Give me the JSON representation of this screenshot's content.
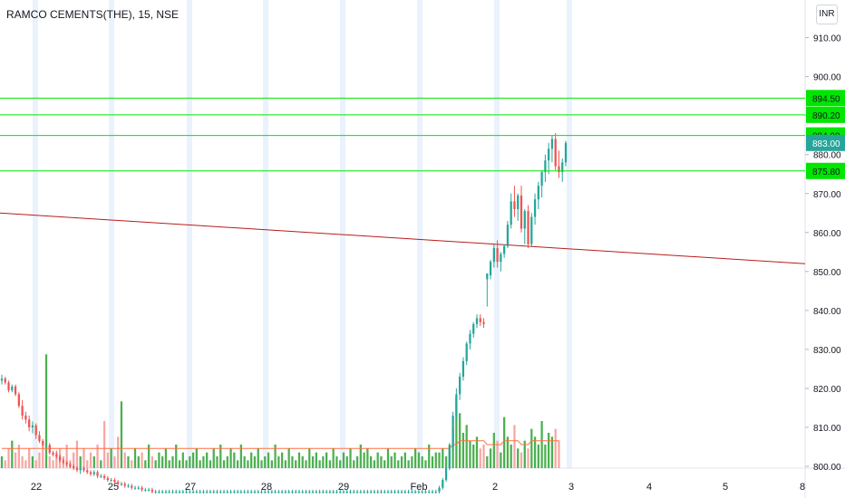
{
  "header": {
    "symbol_line": "RAMCO CEMENTS(THE), 15, NSE",
    "currency": "INR"
  },
  "colors": {
    "up": "#26a69a",
    "down": "#ef5350",
    "vol_up": "#4caf50",
    "vol_down": "#f7a6a3",
    "hline": "#00e600",
    "trendline": "#b71c1c",
    "ma": "#ff7043",
    "last_price_badge": "#26a69a",
    "session_band": "#eaf2fd",
    "axis_text": "#131722"
  },
  "chart_data": {
    "type": "candlestick",
    "y_axis": {
      "ylim": [
        800,
        912
      ],
      "ticks": [
        "800.00",
        "810.00",
        "820.00",
        "830.00",
        "840.00",
        "850.00",
        "860.00",
        "870.00",
        "880.00",
        "890.00",
        "900.00",
        "910.00"
      ]
    },
    "x_axis": {
      "labels": [
        "22",
        "25",
        "27",
        "28",
        "29",
        "Feb",
        "2",
        "3",
        "4",
        "5",
        "8"
      ]
    },
    "horizontal_lines": [
      894.5,
      890.2,
      884.9,
      875.8
    ],
    "price_labels": [
      "894.50",
      "890.20",
      "884.90",
      "875.80"
    ],
    "last_price": "883.00",
    "trendline": {
      "start_value": 865.0,
      "end_value": 852.0
    },
    "candles": [
      [
        822.0,
        823.5,
        821.0,
        822.5
      ],
      [
        822.5,
        823.0,
        821.0,
        821.5
      ],
      [
        821.5,
        822.0,
        819.0,
        819.5
      ],
      [
        819.5,
        821.0,
        819.0,
        820.5
      ],
      [
        820.5,
        821.0,
        818.0,
        818.5
      ],
      [
        818.5,
        819.0,
        815.0,
        815.5
      ],
      [
        815.5,
        817.0,
        812.0,
        813.0
      ],
      [
        813.0,
        814.0,
        811.0,
        812.0
      ],
      [
        812.0,
        813.0,
        809.0,
        810.0
      ],
      [
        810.0,
        811.5,
        808.5,
        810.5
      ],
      [
        810.5,
        811.0,
        807.0,
        808.0
      ],
      [
        808.0,
        809.0,
        806.0,
        806.5
      ],
      [
        806.5,
        807.0,
        805.0,
        805.5
      ],
      [
        805.5,
        806.0,
        805.0,
        805.5
      ],
      [
        805.5,
        806.0,
        803.0,
        803.5
      ],
      [
        803.5,
        804.0,
        802.5,
        803.0
      ],
      [
        803.0,
        804.0,
        802.0,
        802.5
      ],
      [
        802.5,
        803.0,
        801.0,
        801.5
      ],
      [
        801.5,
        802.0,
        800.5,
        801.0
      ],
      [
        801.0,
        801.5,
        800.0,
        800.5
      ],
      [
        800.5,
        801.0,
        799.5,
        800.0
      ],
      [
        800.0,
        800.5,
        799.0,
        799.5
      ],
      [
        799.5,
        800.0,
        798.5,
        799.0
      ],
      [
        799.0,
        800.0,
        798.0,
        799.5
      ],
      [
        799.5,
        800.0,
        798.5,
        799.0
      ],
      [
        799.0,
        799.5,
        798.0,
        798.5
      ],
      [
        798.5,
        799.0,
        797.5,
        798.0
      ],
      [
        798.0,
        799.0,
        797.5,
        798.5
      ],
      [
        798.5,
        799.0,
        797.0,
        797.5
      ],
      [
        797.5,
        798.0,
        797.0,
        797.5
      ],
      [
        797.5,
        798.0,
        796.5,
        797.0
      ],
      [
        797.0,
        797.5,
        796.0,
        796.5
      ],
      [
        796.5,
        797.0,
        796.0,
        796.5
      ],
      [
        796.5,
        797.0,
        795.5,
        796.0
      ],
      [
        796.0,
        796.5,
        795.0,
        795.5
      ],
      [
        795.5,
        796.0,
        795.0,
        795.5
      ],
      [
        795.5,
        796.0,
        794.5,
        795.0
      ],
      [
        795.0,
        795.5,
        794.5,
        795.0
      ],
      [
        795.0,
        795.5,
        794.0,
        794.5
      ],
      [
        794.5,
        795.0,
        794.0,
        794.5
      ],
      [
        794.5,
        795.0,
        794.0,
        794.5
      ],
      [
        794.5,
        795.0,
        793.5,
        794.0
      ],
      [
        794.0,
        794.5,
        793.5,
        794.0
      ],
      [
        794.0,
        794.5,
        793.5,
        794.0
      ],
      [
        794.0,
        794.5,
        793.0,
        793.5
      ],
      [
        793.5,
        794.0,
        793.0,
        793.5
      ],
      [
        793.5,
        794.0,
        793.0,
        793.5
      ],
      [
        793.5,
        794.0,
        793.0,
        793.5
      ],
      [
        793.5,
        794.0,
        793.0,
        793.5
      ],
      [
        793.5,
        794.0,
        793.0,
        793.5
      ],
      [
        793.5,
        794.0,
        793.0,
        793.5
      ],
      [
        793.5,
        794.0,
        793.0,
        793.5
      ],
      [
        793.5,
        794.0,
        793.0,
        793.5
      ],
      [
        793.5,
        794.0,
        793.0,
        793.5
      ],
      [
        793.5,
        794.0,
        793.0,
        793.5
      ],
      [
        793.5,
        794.0,
        793.0,
        793.5
      ],
      [
        793.5,
        794.0,
        793.0,
        793.5
      ],
      [
        793.5,
        794.0,
        793.0,
        793.5
      ],
      [
        793.5,
        794.0,
        793.0,
        793.5
      ],
      [
        793.5,
        794.0,
        793.0,
        793.5
      ],
      [
        793.5,
        794.0,
        793.0,
        793.5
      ],
      [
        793.5,
        794.0,
        793.0,
        793.5
      ],
      [
        793.5,
        794.0,
        793.0,
        793.5
      ],
      [
        793.5,
        794.0,
        793.0,
        793.5
      ],
      [
        793.5,
        794.0,
        793.0,
        793.5
      ],
      [
        793.5,
        794.0,
        793.0,
        793.5
      ],
      [
        793.5,
        794.0,
        793.0,
        793.5
      ],
      [
        793.5,
        794.0,
        793.0,
        793.5
      ],
      [
        793.5,
        794.0,
        793.0,
        793.5
      ],
      [
        793.5,
        794.0,
        793.0,
        793.5
      ],
      [
        793.5,
        794.0,
        793.0,
        793.5
      ],
      [
        793.5,
        794.0,
        793.0,
        793.5
      ],
      [
        793.5,
        794.0,
        793.0,
        793.5
      ],
      [
        793.5,
        794.0,
        793.0,
        793.5
      ],
      [
        793.5,
        794.0,
        793.0,
        793.5
      ],
      [
        793.5,
        794.0,
        793.0,
        793.5
      ],
      [
        793.5,
        794.0,
        793.0,
        793.5
      ],
      [
        793.5,
        794.0,
        793.0,
        793.5
      ],
      [
        793.5,
        794.0,
        793.0,
        793.5
      ],
      [
        793.5,
        794.0,
        793.0,
        793.5
      ],
      [
        793.5,
        794.0,
        793.0,
        793.5
      ],
      [
        793.5,
        794.0,
        793.0,
        793.5
      ],
      [
        793.5,
        794.0,
        793.0,
        793.5
      ],
      [
        793.5,
        794.0,
        793.0,
        793.5
      ],
      [
        793.5,
        794.0,
        793.0,
        793.5
      ],
      [
        793.5,
        794.0,
        793.0,
        793.5
      ],
      [
        793.5,
        794.0,
        793.0,
        793.5
      ],
      [
        793.5,
        794.0,
        793.0,
        793.5
      ],
      [
        793.5,
        794.0,
        793.0,
        793.5
      ],
      [
        793.5,
        794.0,
        793.0,
        793.5
      ],
      [
        793.5,
        794.0,
        793.0,
        793.5
      ],
      [
        793.5,
        794.0,
        793.0,
        793.5
      ],
      [
        793.5,
        794.0,
        793.0,
        793.5
      ],
      [
        793.5,
        794.0,
        793.0,
        793.5
      ],
      [
        793.5,
        794.0,
        793.0,
        793.5
      ],
      [
        793.5,
        794.0,
        793.0,
        793.5
      ],
      [
        793.5,
        794.0,
        793.0,
        793.5
      ],
      [
        793.5,
        794.0,
        793.0,
        793.5
      ],
      [
        793.5,
        794.0,
        793.0,
        793.5
      ],
      [
        793.5,
        794.0,
        793.0,
        793.5
      ],
      [
        793.5,
        794.0,
        793.0,
        793.5
      ],
      [
        793.5,
        794.0,
        793.0,
        793.5
      ],
      [
        793.5,
        794.0,
        793.0,
        793.5
      ],
      [
        793.5,
        794.0,
        793.0,
        793.5
      ],
      [
        793.5,
        794.0,
        793.0,
        793.5
      ],
      [
        793.5,
        794.0,
        793.0,
        793.5
      ],
      [
        793.5,
        794.0,
        793.0,
        793.5
      ],
      [
        793.5,
        794.0,
        793.0,
        793.5
      ],
      [
        793.5,
        794.0,
        793.0,
        793.5
      ],
      [
        793.5,
        794.0,
        793.0,
        793.5
      ],
      [
        793.5,
        794.0,
        793.0,
        793.5
      ],
      [
        793.5,
        794.0,
        793.0,
        793.5
      ],
      [
        793.5,
        794.0,
        793.0,
        793.5
      ],
      [
        793.5,
        794.0,
        793.0,
        793.5
      ],
      [
        793.5,
        794.0,
        793.0,
        793.5
      ],
      [
        793.5,
        794.0,
        793.0,
        793.5
      ],
      [
        793.5,
        794.0,
        793.0,
        793.5
      ],
      [
        793.5,
        794.0,
        793.0,
        793.5
      ],
      [
        793.5,
        794.0,
        793.0,
        793.5
      ],
      [
        793.5,
        794.0,
        793.0,
        793.5
      ],
      [
        793.5,
        794.0,
        793.0,
        793.5
      ],
      [
        793.5,
        794.0,
        793.0,
        793.5
      ],
      [
        793.5,
        794.0,
        793.0,
        793.5
      ],
      [
        793.5,
        794.0,
        793.0,
        793.5
      ],
      [
        793.5,
        794.0,
        793.0,
        793.5
      ],
      [
        793.5,
        794.0,
        793.0,
        793.5
      ],
      [
        793.5,
        794.0,
        793.0,
        793.5
      ],
      [
        793.5,
        794.0,
        793.0,
        793.5
      ],
      [
        793.5,
        795.0,
        793.0,
        794.5
      ],
      [
        794.5,
        797.0,
        794.0,
        796.5
      ],
      [
        796.5,
        800.0,
        796.0,
        799.5
      ],
      [
        799.5,
        806.0,
        799.0,
        805.0
      ],
      [
        805.0,
        814.0,
        804.0,
        813.0
      ],
      [
        813.0,
        820.0,
        812.0,
        818.5
      ],
      [
        818.5,
        824.0,
        817.0,
        823.0
      ],
      [
        823.0,
        828.0,
        822.0,
        827.0
      ],
      [
        827.0,
        832.0,
        826.0,
        831.5
      ],
      [
        831.5,
        835.0,
        830.0,
        834.0
      ],
      [
        834.0,
        837.0,
        833.0,
        836.5
      ],
      [
        836.5,
        839.0,
        835.5,
        838.0
      ],
      [
        838.0,
        839.0,
        836.0,
        837.0
      ],
      [
        837.0,
        838.0,
        835.5,
        836.5
      ],
      [
        848.0,
        849.0,
        841.0,
        849.5
      ],
      [
        849.0,
        853.0,
        848.0,
        852.5
      ],
      [
        852.5,
        857.0,
        851.0,
        856.0
      ],
      [
        856.0,
        858.0,
        851.0,
        852.5
      ],
      [
        852.5,
        855.0,
        850.0,
        854.5
      ],
      [
        854.5,
        857.0,
        853.5,
        856.5
      ],
      [
        856.5,
        863.0,
        856.0,
        862.0
      ],
      [
        862.0,
        870.0,
        861.0,
        868.0
      ],
      [
        868.0,
        872.0,
        864.0,
        866.0
      ],
      [
        866.0,
        870.0,
        863.0,
        869.5
      ],
      [
        869.5,
        872.0,
        860.0,
        861.0
      ],
      [
        861.0,
        866.0,
        857.0,
        865.5
      ],
      [
        865.5,
        867.0,
        856.0,
        857.0
      ],
      [
        857.0,
        865.0,
        856.5,
        864.0
      ],
      [
        864.0,
        870.0,
        862.0,
        868.5
      ],
      [
        868.5,
        873.0,
        866.0,
        872.0
      ],
      [
        872.0,
        876.0,
        869.0,
        875.5
      ],
      [
        875.5,
        880.0,
        873.0,
        878.5
      ],
      [
        878.5,
        883.0,
        875.0,
        881.5
      ],
      [
        881.5,
        885.0,
        878.0,
        884.0
      ],
      [
        884.0,
        885.5,
        876.0,
        877.0
      ],
      [
        877.0,
        881.0,
        874.0,
        875.5
      ],
      [
        875.5,
        879.0,
        873.0,
        878.0
      ],
      [
        878.0,
        883.5,
        877.0,
        883.0
      ]
    ],
    "volume": [
      3,
      2,
      5,
      7,
      4,
      6,
      3,
      2,
      5,
      3,
      2,
      4,
      6,
      29,
      3,
      2,
      4,
      5,
      3,
      6,
      2,
      4,
      7,
      3,
      5,
      2,
      4,
      3,
      6,
      2,
      12,
      4,
      5,
      3,
      8,
      17,
      4,
      3,
      2,
      5,
      3,
      4,
      2,
      6,
      3,
      2,
      4,
      3,
      5,
      2,
      3,
      6,
      2,
      4,
      2,
      3,
      4,
      5,
      2,
      3,
      4,
      2,
      5,
      3,
      6,
      2,
      3,
      5,
      4,
      2,
      6,
      3,
      2,
      4,
      3,
      5,
      2,
      3,
      4,
      2,
      6,
      3,
      4,
      2,
      5,
      3,
      2,
      4,
      3,
      2,
      5,
      3,
      4,
      2,
      3,
      4,
      2,
      5,
      3,
      2,
      4,
      3,
      5,
      2,
      3,
      6,
      4,
      5,
      3,
      2,
      4,
      3,
      2,
      5,
      3,
      4,
      2,
      3,
      4,
      2,
      3,
      5,
      4,
      3,
      2,
      6,
      3,
      4,
      4,
      5,
      3,
      6,
      10,
      18,
      14,
      9,
      11,
      7,
      6,
      8,
      5,
      6,
      3,
      5,
      9,
      7,
      4,
      13,
      8,
      6,
      11,
      5,
      4,
      7,
      5,
      10,
      8,
      6,
      12,
      6,
      9,
      8,
      10,
      7
    ],
    "ma_volume": [
      5,
      5,
      5,
      5,
      5,
      5,
      5,
      5,
      5,
      5,
      5,
      5,
      5,
      5,
      5,
      5,
      5,
      5,
      5,
      5,
      5,
      5,
      5,
      5,
      5,
      5,
      5,
      5,
      5,
      5,
      5,
      5,
      5,
      5,
      5,
      5,
      5,
      5,
      5,
      5,
      5,
      5,
      5,
      5,
      5,
      5,
      5,
      5,
      5,
      5,
      5,
      5,
      5,
      5,
      5,
      5,
      5,
      5,
      5,
      5,
      5,
      5,
      5,
      5,
      5,
      5,
      5,
      5,
      5,
      5,
      5,
      5,
      5,
      5,
      5,
      5,
      5,
      5,
      5,
      5,
      5,
      5,
      5,
      5,
      5,
      5,
      5,
      5,
      5,
      5,
      5,
      5,
      5,
      5,
      5,
      5,
      5,
      5,
      5,
      5,
      5,
      5,
      5,
      5,
      5,
      5,
      5,
      5,
      5,
      5,
      5,
      5,
      5,
      5,
      5,
      5,
      5,
      5,
      5,
      5,
      5,
      5,
      5,
      5,
      5,
      5,
      5,
      5,
      5,
      5,
      5,
      5,
      6,
      6,
      7,
      7,
      7,
      7,
      7,
      7,
      7,
      7,
      6,
      6,
      6,
      6,
      6,
      7,
      7,
      7,
      7,
      7,
      6,
      6,
      6,
      7,
      7,
      7,
      7,
      7,
      7,
      7,
      7,
      7
    ],
    "volume_max": 30
  }
}
